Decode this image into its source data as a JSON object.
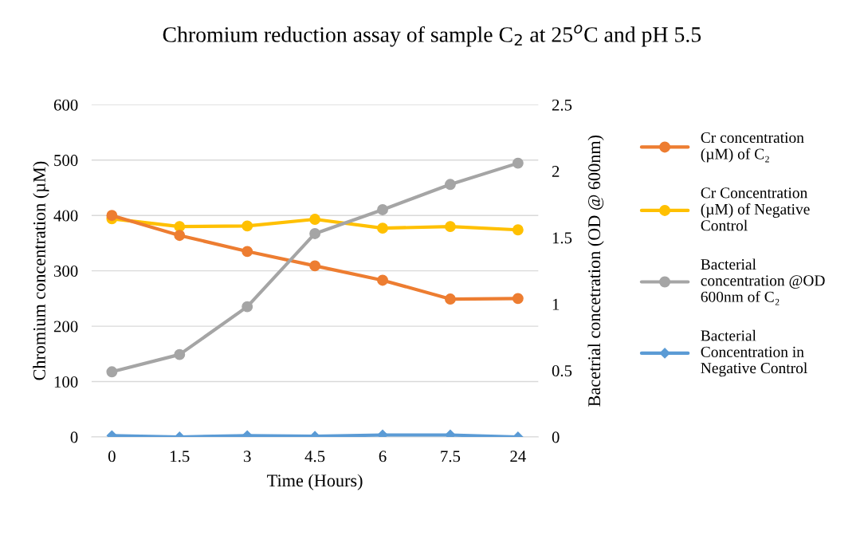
{
  "chart_data": {
    "type": "line",
    "title": "Chromium reduction assay of sample C$_{2}$ at 25$^{o}$C and pH 5.5",
    "xlabel": "Time (Hours)",
    "ylabel": "Chromium concentration (µM)",
    "y2label": "Bacetrial concetration (OD @ 600nm)",
    "categories": [
      "0",
      "1.5",
      "3",
      "4.5",
      "6",
      "7.5",
      "24"
    ],
    "series": [
      {
        "name": "Cr concentration (µM) of C₂",
        "color": "#ed7d31",
        "marker": "circle",
        "values": [
          400,
          364,
          335,
          309,
          283,
          249,
          250
        ]
      },
      {
        "name": "Cr Concentration (µM) of Negative Control",
        "color": "#ffc000",
        "marker": "circle",
        "values": [
          394,
          380,
          381,
          393,
          377,
          380,
          374
        ]
      },
      {
        "name": "Bacterial concentration @OD 600nm of C₂",
        "color": "#a5a5a5",
        "marker": "circle",
        "axis": "y2",
        "values": [
          0.49,
          0.62,
          0.98,
          1.53,
          1.71,
          1.9,
          2.06
        ]
      },
      {
        "name": "Bacterial Concentration in Negative Control",
        "color": "#5b9bd5",
        "marker": "diamond",
        "axis": "y2",
        "values": [
          0.01,
          0.0,
          0.01,
          0.005,
          0.015,
          0.015,
          0.0
        ]
      }
    ],
    "ylim": [
      0,
      600
    ],
    "yticks": [
      0,
      100,
      200,
      300,
      400,
      500,
      600
    ],
    "y2lim": [
      0,
      2.5
    ],
    "y2ticks": [
      0,
      0.5,
      1,
      1.5,
      2,
      2.5
    ],
    "grid": "y",
    "legend": "right",
    "line_style": "solid"
  }
}
